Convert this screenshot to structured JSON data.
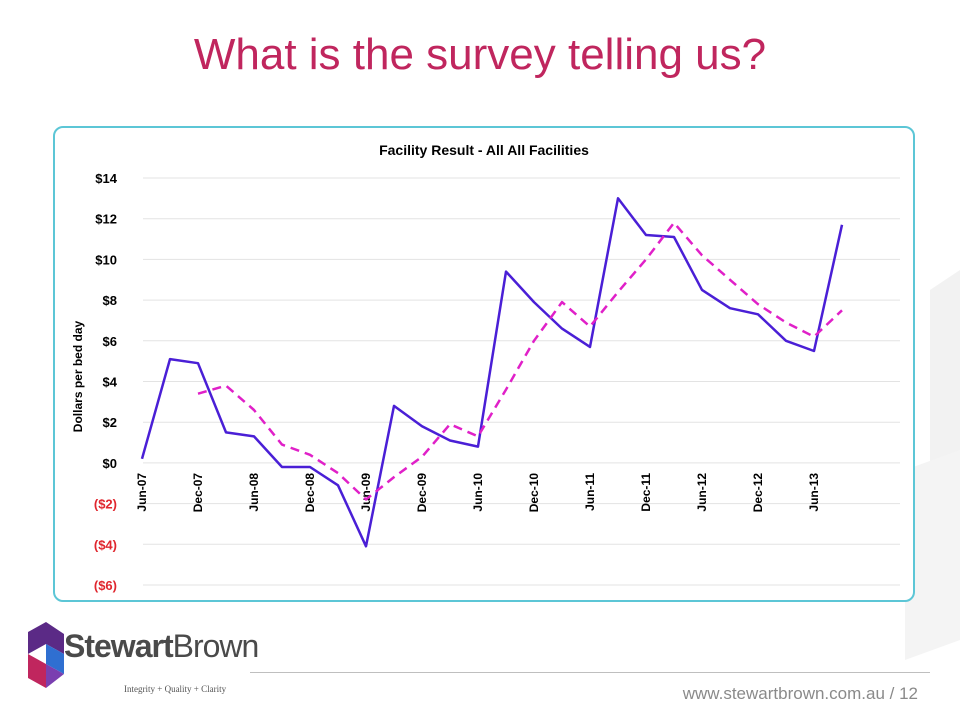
{
  "slide": {
    "title": "What is the survey telling us?",
    "footer_url": "www.stewartbrown.com.au",
    "page_number": "12",
    "brand": {
      "name_bold": "Stewart",
      "name_light": "Brown",
      "tagline": "Integrity + Quality + Clarity",
      "colors": {
        "title": "#c0265e",
        "frame": "#5cc6d6",
        "logo_purple": "#5b2a86",
        "logo_blue": "#2f6fd1"
      }
    }
  },
  "chart_data": {
    "type": "line",
    "title": "Facility Result - All All Facilities",
    "ylabel": "Dollars per bed day",
    "xlabel": "",
    "ylim": [
      -6,
      14
    ],
    "yticks": [
      14,
      12,
      10,
      8,
      6,
      4,
      2,
      0,
      -2,
      -4,
      -6
    ],
    "ytick_labels": [
      "$14",
      "$12",
      "$10",
      "$8",
      "$6",
      "$4",
      "$2",
      "$0",
      "($2)",
      "($4)",
      "($6)"
    ],
    "negative_tick_color": "#e0262e",
    "grid": true,
    "x": [
      "Jun-07",
      "Sep-07",
      "Dec-07",
      "Mar-08",
      "Jun-08",
      "Sep-08",
      "Dec-08",
      "Mar-09",
      "Jun-09",
      "Sep-09",
      "Dec-09",
      "Mar-10",
      "Jun-10",
      "Sep-10",
      "Dec-10",
      "Mar-11",
      "Jun-11",
      "Sep-11",
      "Dec-11",
      "Mar-12",
      "Jun-12",
      "Sep-12",
      "Dec-12",
      "Mar-13",
      "Jun-13",
      "Sep-13"
    ],
    "xtick_labels": [
      "Jun-07",
      "Dec-07",
      "Jun-08",
      "Dec-08",
      "Jun-09",
      "Dec-09",
      "Jun-10",
      "Dec-10",
      "Jun-11",
      "Dec-11",
      "Jun-12",
      "Dec-12",
      "Jun-13"
    ],
    "series": [
      {
        "style": "solid",
        "color": "#4a1fd6",
        "values": [
          0.2,
          5.1,
          4.9,
          1.5,
          1.3,
          -0.2,
          -0.2,
          -1.1,
          -4.1,
          2.8,
          1.8,
          1.1,
          0.8,
          9.4,
          7.9,
          6.6,
          5.7,
          13.0,
          11.2,
          11.1,
          8.5,
          7.6,
          7.3,
          6.0,
          5.5,
          11.7
        ]
      },
      {
        "style": "dashed",
        "color": "#e020c8",
        "values": [
          null,
          null,
          3.4,
          3.8,
          2.6,
          0.9,
          0.4,
          -0.5,
          -1.8,
          -0.7,
          0.3,
          1.9,
          1.3,
          3.6,
          6.0,
          7.9,
          6.7,
          8.4,
          10.0,
          11.8,
          10.2,
          9.0,
          7.8,
          6.9,
          6.2,
          7.5
        ]
      }
    ]
  }
}
